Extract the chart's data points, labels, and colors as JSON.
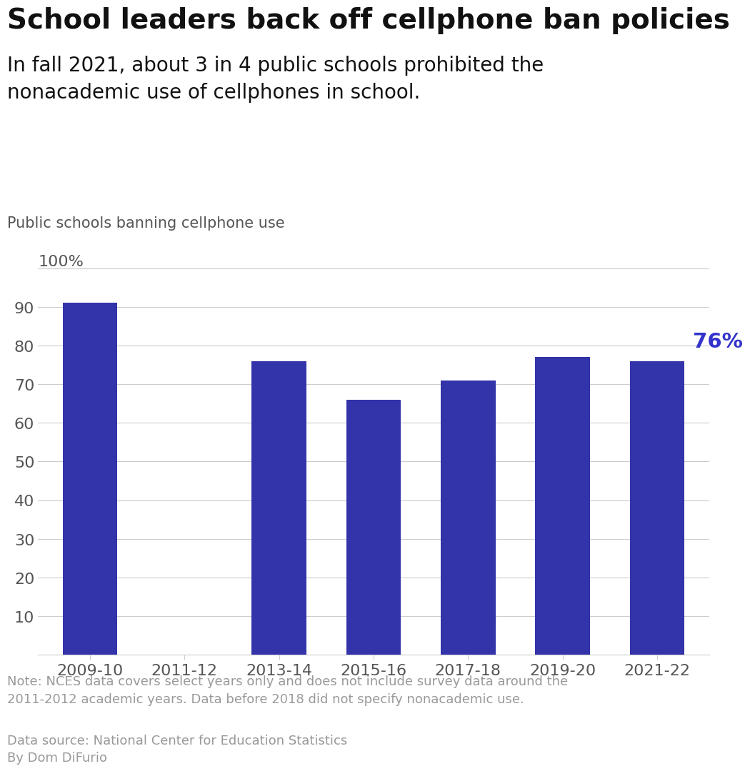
{
  "title": "School leaders back off cellphone ban policies",
  "subtitle": "In fall 2021, about 3 in 4 public schools prohibited the\nnonacademic use of cellphones in school.",
  "axis_label": "Public schools banning cellphone use",
  "categories": [
    "2009-10",
    "2011-12",
    "2013-14",
    "2015-16",
    "2017-18",
    "2019-20",
    "2021-22"
  ],
  "values": [
    91,
    0,
    76,
    66,
    71,
    77,
    76
  ],
  "bar_color": "#3333aa",
  "ylim": [
    0,
    100
  ],
  "yticks": [
    10,
    20,
    30,
    40,
    50,
    60,
    70,
    80,
    90
  ],
  "annotation_text": "76%",
  "annotation_color": "#3333cc",
  "note_text": "Note: NCES data covers select years only and does not include survey data around the\n2011-2012 academic years. Data before 2018 did not specify nonacademic use.",
  "source_text": "Data source: National Center for Education Statistics\nBy Dom DiFurio",
  "note_color": "#999999",
  "background_color": "#ffffff",
  "grid_color": "#cccccc",
  "tick_label_color": "#555555",
  "title_fontsize": 28,
  "subtitle_fontsize": 20,
  "axis_label_fontsize": 15,
  "tick_fontsize": 16,
  "annotation_fontsize": 21,
  "note_fontsize": 13
}
